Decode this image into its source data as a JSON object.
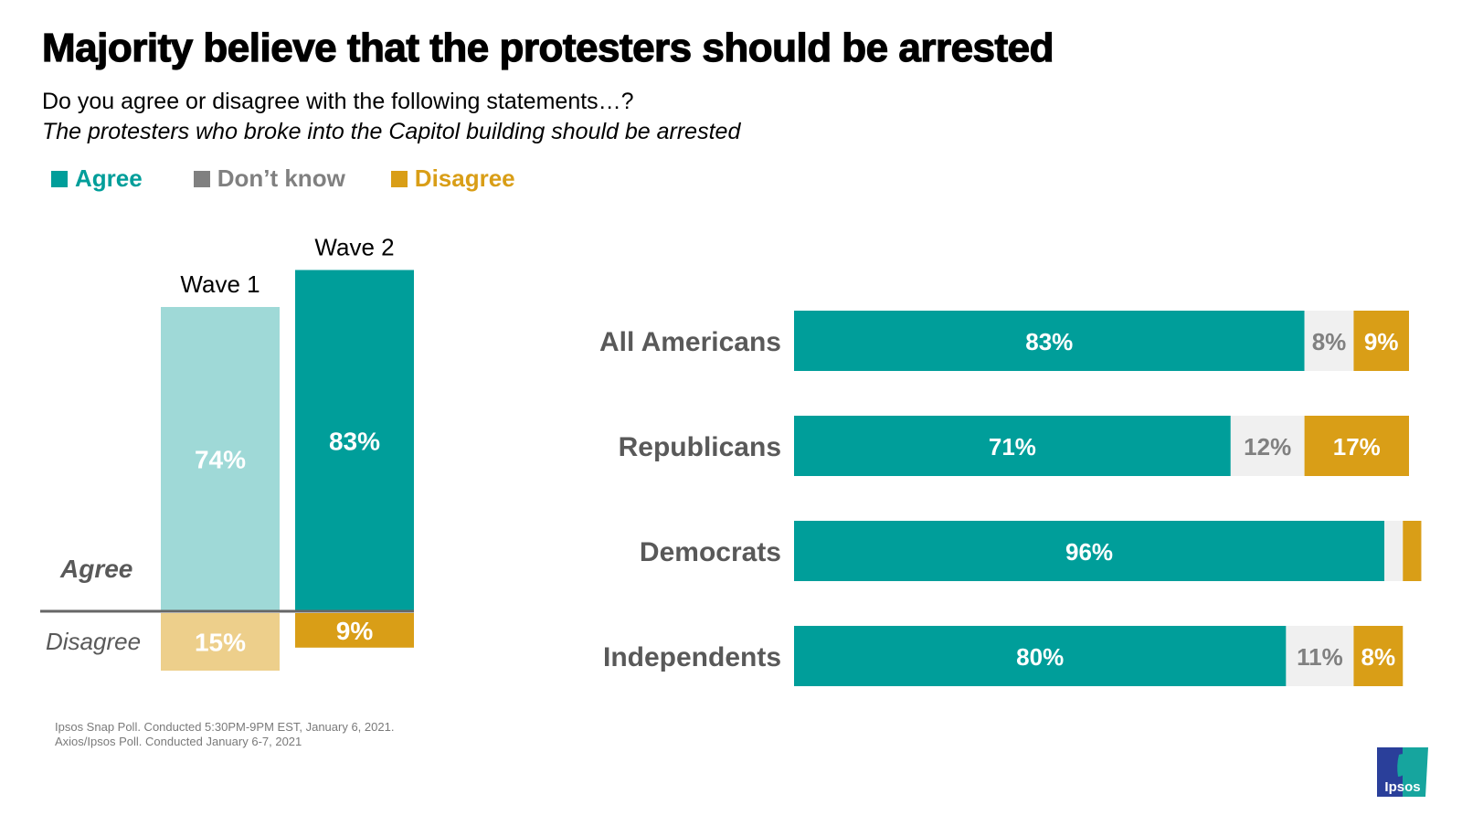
{
  "title": "Majority believe that the protesters should be arrested",
  "subtitle": "Do you agree or disagree with the following statements…?",
  "statement": "The protesters who broke into the Capitol building should be arrested",
  "legend": [
    {
      "label": "Agree",
      "color": "#009e9a"
    },
    {
      "label": "Don’t know",
      "color": "#808080"
    },
    {
      "label": "Disagree",
      "color": "#d99e17"
    }
  ],
  "footnote": [
    "Ipsos Snap Poll. Conducted 5:30PM-9PM EST, January 6, 2021.",
    "Axios/Ipsos Poll. Conducted January 6-7, 2021"
  ],
  "logo_text": "Ipsos",
  "chart_data": [
    {
      "type": "bar",
      "title": "Agree vs Disagree by wave",
      "categories": [
        "Wave 1",
        "Wave 2"
      ],
      "side_labels": {
        "agree": "Agree",
        "disagree": "Disagree"
      },
      "series": [
        {
          "name": "Agree",
          "values": [
            74,
            83
          ],
          "labels": [
            "74%",
            "83%"
          ],
          "colors": [
            "#9fd9d7",
            "#009e9a"
          ]
        },
        {
          "name": "Disagree",
          "values": [
            15,
            9
          ],
          "labels": [
            "15%",
            "9%"
          ],
          "colors": [
            "#edcf8b",
            "#d99e17"
          ]
        }
      ]
    },
    {
      "type": "bar",
      "orientation": "horizontal-stacked",
      "categories": [
        "All Americans",
        "Republicans",
        "Democrats",
        "Independents"
      ],
      "series": [
        {
          "name": "Agree",
          "values": [
            83,
            71,
            96,
            80
          ],
          "labels": [
            "83%",
            "71%",
            "96%",
            "80%"
          ],
          "color": "#009e9a"
        },
        {
          "name": "Don't know",
          "values": [
            8,
            12,
            3,
            11
          ],
          "labels": [
            "8%",
            "12%",
            "",
            "11%"
          ],
          "color": "#f0f0f0"
        },
        {
          "name": "Disagree",
          "values": [
            9,
            17,
            3,
            8
          ],
          "labels": [
            "9%",
            "17%",
            "",
            "8%"
          ],
          "color": "#d99e17"
        }
      ],
      "xlim": [
        0,
        100
      ]
    }
  ]
}
